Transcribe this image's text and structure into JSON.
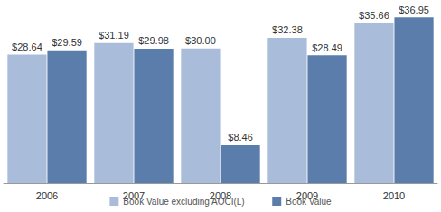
{
  "chart_data": {
    "type": "bar",
    "categories": [
      "2006",
      "2007",
      "2008",
      "2009",
      "2010"
    ],
    "series": [
      {
        "name": "Book Value excluding AOCI(L)",
        "color": "#a9bdda",
        "values": [
          28.64,
          31.19,
          30.0,
          32.38,
          35.66
        ],
        "value_labels": [
          "$28.64",
          "$31.19",
          "$30.00",
          "$32.38",
          "$35.66"
        ]
      },
      {
        "name": "Book Value",
        "color": "#5b7dab",
        "values": [
          29.59,
          29.98,
          8.46,
          28.49,
          36.95
        ],
        "value_labels": [
          "$29.59",
          "$29.98",
          "$8.46",
          "$28.49",
          "$36.95"
        ]
      }
    ],
    "ylim": [
      0,
      38
    ],
    "grid": false,
    "legend": "bottom",
    "data_labels": true,
    "tick_labels": "x"
  }
}
